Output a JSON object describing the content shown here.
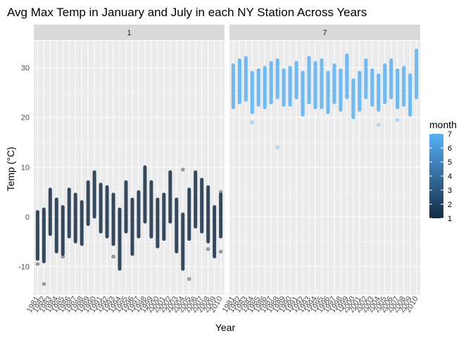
{
  "chart_data": {
    "type": "scatter",
    "title": "Avg Max Temp in January and July in each NY Station Across Years",
    "xlabel": "Year",
    "ylabel": "Temp (°C)",
    "ylim": [
      -15.6,
      35.4
    ],
    "y_ticks": [
      -10,
      0,
      10,
      20,
      30
    ],
    "x_ticks": [
      1981,
      1982,
      1983,
      1984,
      1985,
      1986,
      1987,
      1988,
      1989,
      1990,
      1991,
      1992,
      1993,
      1994,
      1995,
      1996,
      1997,
      1998,
      1999,
      2000,
      2001,
      2002,
      2003,
      2004,
      2005,
      2006,
      2007,
      2008,
      2009,
      2010
    ],
    "grid": true,
    "facets": [
      {
        "label": "1",
        "month": 1,
        "series": [
          {
            "year": 1981,
            "min": -8.5,
            "max": 1.0,
            "outliers": [
              -9.5
            ]
          },
          {
            "year": 1982,
            "min": -9.0,
            "max": 1.5,
            "outliers": [
              -13.5
            ]
          },
          {
            "year": 1983,
            "min": -3.5,
            "max": 5.5,
            "outliers": []
          },
          {
            "year": 1984,
            "min": -7.0,
            "max": 3.5,
            "outliers": []
          },
          {
            "year": 1985,
            "min": -7.5,
            "max": 2.0,
            "outliers": [
              -8.0
            ]
          },
          {
            "year": 1986,
            "min": -4.0,
            "max": 5.5,
            "outliers": []
          },
          {
            "year": 1987,
            "min": -5.0,
            "max": 4.5,
            "outliers": []
          },
          {
            "year": 1988,
            "min": -5.5,
            "max": 3.0,
            "outliers": []
          },
          {
            "year": 1989,
            "min": -1.5,
            "max": 7.0,
            "outliers": []
          },
          {
            "year": 1990,
            "min": 0.0,
            "max": 9.0,
            "outliers": []
          },
          {
            "year": 1991,
            "min": -3.0,
            "max": 6.5,
            "outliers": []
          },
          {
            "year": 1992,
            "min": -4.0,
            "max": 6.0,
            "outliers": []
          },
          {
            "year": 1993,
            "min": -5.5,
            "max": 4.5,
            "outliers": [
              -8.0
            ]
          },
          {
            "year": 1994,
            "min": -10.5,
            "max": 1.5,
            "outliers": []
          },
          {
            "year": 1995,
            "min": -3.0,
            "max": 7.0,
            "outliers": []
          },
          {
            "year": 1996,
            "min": -7.5,
            "max": 3.5,
            "outliers": []
          },
          {
            "year": 1997,
            "min": -4.0,
            "max": 5.0,
            "outliers": []
          },
          {
            "year": 1998,
            "min": -1.0,
            "max": 10.0,
            "outliers": []
          },
          {
            "year": 1999,
            "min": -4.0,
            "max": 7.0,
            "outliers": []
          },
          {
            "year": 2000,
            "min": -6.0,
            "max": 3.5,
            "outliers": []
          },
          {
            "year": 2001,
            "min": -4.5,
            "max": 4.5,
            "outliers": []
          },
          {
            "year": 2002,
            "min": -1.0,
            "max": 9.0,
            "outliers": []
          },
          {
            "year": 2003,
            "min": -7.0,
            "max": 3.5,
            "outliers": []
          },
          {
            "year": 2004,
            "min": -10.5,
            "max": 0.5,
            "outliers": [
              9.5
            ]
          },
          {
            "year": 2005,
            "min": -4.5,
            "max": 5.5,
            "outliers": [
              -12.5
            ]
          },
          {
            "year": 2006,
            "min": -2.0,
            "max": 9.0,
            "outliers": []
          },
          {
            "year": 2007,
            "min": -3.0,
            "max": 7.5,
            "outliers": []
          },
          {
            "year": 2008,
            "min": -5.0,
            "max": 6.0,
            "outliers": [
              -6.5
            ]
          },
          {
            "year": 2009,
            "min": -8.0,
            "max": 2.0,
            "outliers": []
          },
          {
            "year": 2010,
            "min": -4.0,
            "max": 4.5,
            "outliers": [
              -7.0,
              5.0
            ]
          }
        ]
      },
      {
        "label": "7",
        "month": 7,
        "series": [
          {
            "year": 1981,
            "min": 22.0,
            "max": 30.5,
            "outliers": []
          },
          {
            "year": 1982,
            "min": 23.0,
            "max": 31.5,
            "outliers": []
          },
          {
            "year": 1983,
            "min": 23.5,
            "max": 32.0,
            "outliers": []
          },
          {
            "year": 1984,
            "min": 21.0,
            "max": 29.0,
            "outliers": [
              19.0
            ]
          },
          {
            "year": 1985,
            "min": 22.5,
            "max": 29.5,
            "outliers": []
          },
          {
            "year": 1986,
            "min": 22.0,
            "max": 30.0,
            "outliers": []
          },
          {
            "year": 1987,
            "min": 23.0,
            "max": 31.0,
            "outliers": []
          },
          {
            "year": 1988,
            "min": 24.0,
            "max": 31.5,
            "outliers": [
              14.0
            ]
          },
          {
            "year": 1989,
            "min": 22.5,
            "max": 29.5,
            "outliers": []
          },
          {
            "year": 1990,
            "min": 22.5,
            "max": 30.0,
            "outliers": []
          },
          {
            "year": 1991,
            "min": 24.0,
            "max": 31.0,
            "outliers": []
          },
          {
            "year": 1992,
            "min": 20.5,
            "max": 29.0,
            "outliers": []
          },
          {
            "year": 1993,
            "min": 23.0,
            "max": 32.0,
            "outliers": []
          },
          {
            "year": 1994,
            "min": 22.0,
            "max": 31.0,
            "outliers": []
          },
          {
            "year": 1995,
            "min": 22.0,
            "max": 31.5,
            "outliers": []
          },
          {
            "year": 1996,
            "min": 21.0,
            "max": 29.0,
            "outliers": []
          },
          {
            "year": 1997,
            "min": 23.0,
            "max": 30.5,
            "outliers": []
          },
          {
            "year": 1998,
            "min": 21.5,
            "max": 29.5,
            "outliers": []
          },
          {
            "year": 1999,
            "min": 24.0,
            "max": 32.5,
            "outliers": []
          },
          {
            "year": 2000,
            "min": 20.0,
            "max": 27.5,
            "outliers": []
          },
          {
            "year": 2001,
            "min": 21.5,
            "max": 29.0,
            "outliers": []
          },
          {
            "year": 2002,
            "min": 24.0,
            "max": 31.5,
            "outliers": []
          },
          {
            "year": 2003,
            "min": 22.5,
            "max": 29.5,
            "outliers": []
          },
          {
            "year": 2004,
            "min": 21.5,
            "max": 28.5,
            "outliers": [
              18.5
            ]
          },
          {
            "year": 2005,
            "min": 23.0,
            "max": 30.5,
            "outliers": []
          },
          {
            "year": 2006,
            "min": 24.0,
            "max": 31.5,
            "outliers": []
          },
          {
            "year": 2007,
            "min": 22.0,
            "max": 29.5,
            "outliers": [
              19.5
            ]
          },
          {
            "year": 2008,
            "min": 22.5,
            "max": 30.0,
            "outliers": []
          },
          {
            "year": 2009,
            "min": 20.5,
            "max": 28.5,
            "outliers": []
          },
          {
            "year": 2010,
            "min": 24.0,
            "max": 33.5,
            "outliers": []
          }
        ]
      }
    ],
    "legend": {
      "title": "month",
      "position": "right",
      "ticks": [
        1,
        2,
        3,
        4,
        5,
        6,
        7
      ],
      "low_color": "#132b43",
      "high_color": "#56b1f7"
    },
    "colors": {
      "panel_bg": "#ebebeb",
      "strip_bg": "#d9d9d9",
      "grid_major": "#ffffff"
    }
  }
}
